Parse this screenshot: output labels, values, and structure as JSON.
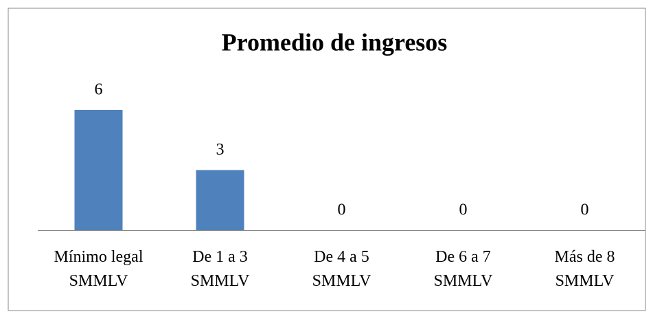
{
  "chart_data": {
    "type": "bar",
    "title": "Promedio de ingresos",
    "categories": [
      "Mínimo legal SMMLV",
      "De 1 a 3 SMMLV",
      "De 4 a 5 SMMLV",
      "De 6 a 7 SMMLV",
      "Más de 8 SMMLV"
    ],
    "values": [
      6,
      3,
      0,
      0,
      0
    ],
    "color": "#4f81bd",
    "ylim": [
      0,
      6
    ]
  }
}
